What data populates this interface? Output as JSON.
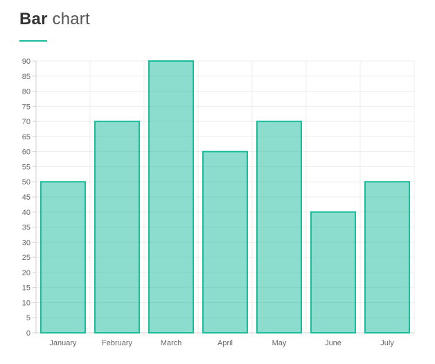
{
  "page": {
    "title_bold": "Bar",
    "title_light": "chart"
  },
  "colors": {
    "accent": "#1abc9c",
    "bar_fill": "rgba(26,188,156,0.5)",
    "bar_stroke": "#1abc9c",
    "grid": "#ececec",
    "axis": "#cfcfcf"
  },
  "chart_data": {
    "type": "bar",
    "title": "Bar chart",
    "categories": [
      "January",
      "February",
      "March",
      "April",
      "May",
      "June",
      "July"
    ],
    "values": [
      50,
      70,
      90,
      60,
      70,
      40,
      50
    ],
    "ylim": [
      0,
      90
    ],
    "ystep": 5,
    "yticks": [
      "0",
      "5",
      "10",
      "15",
      "20",
      "25",
      "30",
      "35",
      "40",
      "45",
      "50",
      "55",
      "60",
      "65",
      "70",
      "75",
      "80",
      "85",
      "90"
    ],
    "grid": true,
    "xlabel": "",
    "ylabel": ""
  }
}
